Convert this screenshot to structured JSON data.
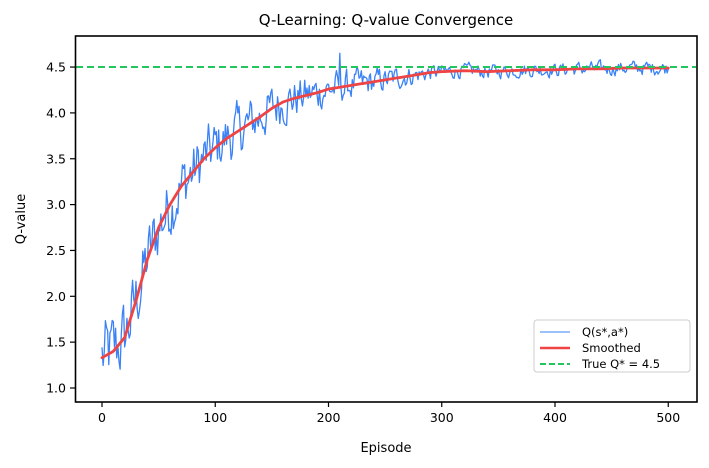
{
  "chart_data": {
    "type": "line",
    "title": "Q-Learning: Q-value Convergence",
    "xlabel": "Episode",
    "ylabel": "Q-value",
    "xlim": [
      -22,
      525
    ],
    "ylim": [
      0.85,
      4.8
    ],
    "x_ticks": [
      0,
      100,
      200,
      300,
      400,
      500
    ],
    "x_tick_labels": [
      "0",
      "100",
      "200",
      "300",
      "400",
      "500"
    ],
    "y_ticks": [
      1.0,
      1.5,
      2.0,
      2.5,
      3.0,
      3.5,
      4.0,
      4.5
    ],
    "y_tick_labels": [
      "1.0",
      "1.5",
      "2.0",
      "2.5",
      "3.0",
      "3.5",
      "4.0",
      "4.5"
    ],
    "grid": false,
    "legend_position": "lower right",
    "series": [
      {
        "name": "Q(s*,a*)",
        "color": "#3b82f6",
        "style": "solid-thin",
        "description": "Noisy raw Q-value per episode, episodes 0-500, noise amplitude shrinking as it converges",
        "noise_amplitude_start": 0.28,
        "noise_amplitude_end": 0.05
      },
      {
        "name": "Smoothed",
        "color": "#ef4444",
        "style": "solid-thick",
        "x": [
          0,
          10,
          20,
          30,
          40,
          50,
          60,
          70,
          80,
          90,
          100,
          110,
          120,
          130,
          140,
          150,
          160,
          170,
          180,
          190,
          200,
          210,
          220,
          230,
          240,
          250,
          260,
          270,
          280,
          290,
          300,
          320,
          340,
          360,
          380,
          400,
          420,
          440,
          460,
          480,
          500
        ],
        "values": [
          1.33,
          1.4,
          1.55,
          1.95,
          2.4,
          2.75,
          3.0,
          3.2,
          3.35,
          3.5,
          3.62,
          3.72,
          3.8,
          3.88,
          3.96,
          4.05,
          4.12,
          4.16,
          4.19,
          4.22,
          4.26,
          4.28,
          4.3,
          4.32,
          4.34,
          4.36,
          4.38,
          4.4,
          4.42,
          4.44,
          4.45,
          4.46,
          4.45,
          4.46,
          4.47,
          4.47,
          4.48,
          4.48,
          4.49,
          4.49,
          4.49
        ]
      },
      {
        "name": "True Q* = 4.5",
        "color": "#22c55e",
        "style": "dashed",
        "value": 4.5
      }
    ]
  },
  "legend": {
    "items": [
      "Q(s*,a*)",
      "Smoothed",
      "True Q* = 4.5"
    ]
  }
}
